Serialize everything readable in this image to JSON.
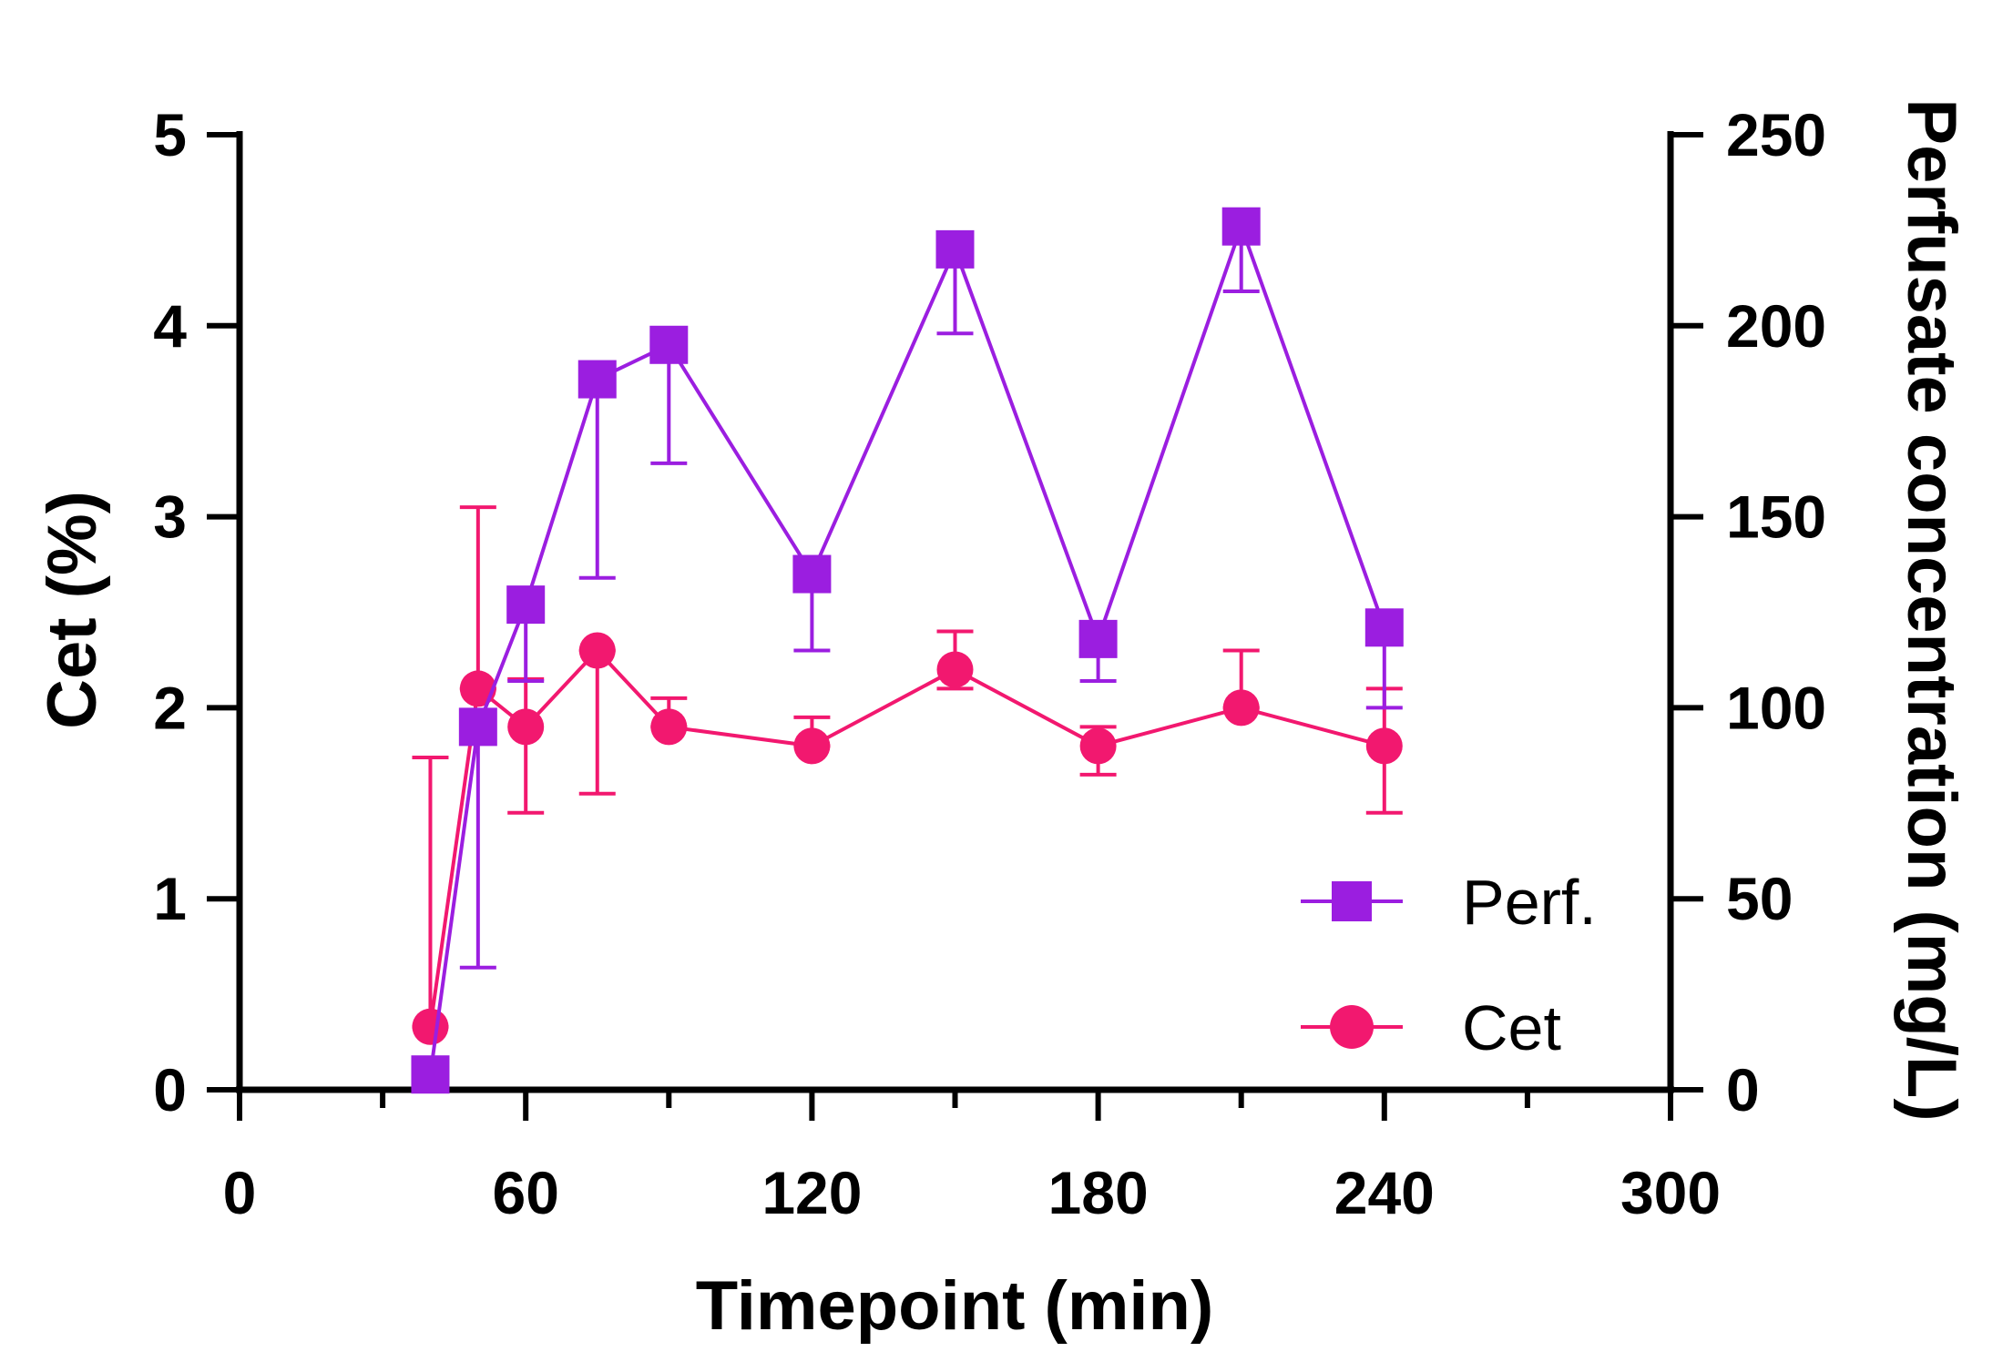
{
  "chart_data": {
    "type": "line",
    "title": "",
    "xlabel": "Timepoint (min)",
    "ylabel_left": "Cet (%)",
    "ylabel_right": "Perfusate concentration (mg/L)",
    "xlim": [
      0,
      300
    ],
    "ylim_left": [
      0,
      5
    ],
    "ylim_right": [
      0,
      250
    ],
    "x_ticks": [
      "0",
      "60",
      "120",
      "180",
      "240",
      "300"
    ],
    "y_left_ticks": [
      "0",
      "1",
      "2",
      "3",
      "4",
      "5"
    ],
    "y_right_ticks": [
      "0",
      "50",
      "100",
      "150",
      "200",
      "250"
    ],
    "grid": false,
    "legend_position": "bottom-right",
    "series": [
      {
        "name": "Perf.",
        "axis": "right",
        "marker": "square",
        "color": "#9b1ee0",
        "x": [
          40,
          50,
          60,
          75,
          90,
          120,
          150,
          180,
          210,
          240
        ],
        "y": [
          4,
          95,
          127,
          186,
          195,
          135,
          220,
          118,
          226,
          121
        ],
        "err_low": [
          0,
          32,
          107,
          134,
          164,
          115,
          198,
          107,
          209,
          100
        ],
        "err_high": [
          0,
          95,
          127,
          186,
          195,
          135,
          220,
          118,
          226,
          121
        ]
      },
      {
        "name": "Cet",
        "axis": "left",
        "marker": "circle",
        "color": "#f2186f",
        "x": [
          40,
          50,
          60,
          75,
          90,
          120,
          150,
          180,
          210,
          240
        ],
        "y": [
          0.33,
          2.1,
          1.9,
          2.3,
          1.9,
          1.8,
          2.2,
          1.8,
          2.0,
          1.8
        ],
        "err_low": [
          0.33,
          2.1,
          1.45,
          1.55,
          1.9,
          1.8,
          2.1,
          1.65,
          2.0,
          1.45
        ],
        "err_high": [
          1.74,
          3.05,
          2.15,
          2.3,
          2.05,
          1.95,
          2.4,
          1.9,
          2.3,
          2.1
        ]
      }
    ]
  }
}
